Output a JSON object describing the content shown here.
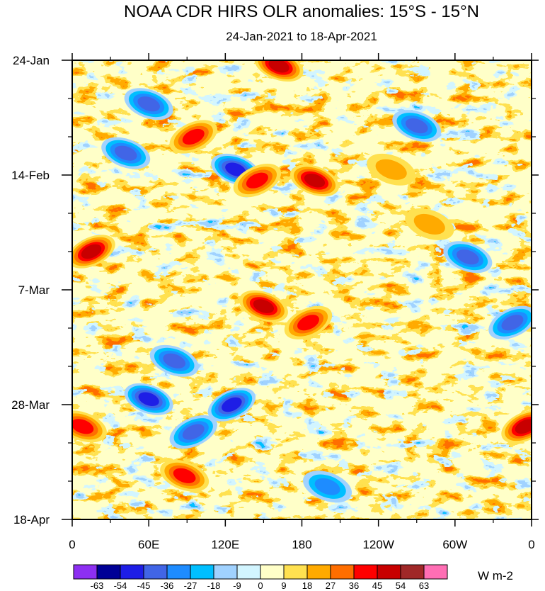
{
  "chart_data": {
    "type": "heatmap",
    "title": "NOAA CDR HIRS OLR anomalies: 15°S - 15°N",
    "subtitle": "24-Jan-2021 to 18-Apr-2021",
    "x_ticks": [
      "0",
      "60E",
      "120E",
      "180",
      "120W",
      "60W",
      "0"
    ],
    "x_tick_values": [
      0,
      60,
      120,
      180,
      240,
      300,
      360
    ],
    "xlim": [
      0,
      360
    ],
    "y_ticks": [
      "24-Jan",
      "14-Feb",
      "7-Mar",
      "28-Mar",
      "18-Apr"
    ],
    "y_tick_values": [
      0,
      21,
      42,
      63,
      84
    ],
    "ylim": [
      0,
      84
    ],
    "colorbar": {
      "levels": [
        "-63",
        "-54",
        "-45",
        "-36",
        "-27",
        "-18",
        "-9",
        "0",
        "9",
        "18",
        "27",
        "36",
        "45",
        "54",
        "63"
      ],
      "colors": [
        "#8d2ff2",
        "#000096",
        "#1e1ee6",
        "#4165e6",
        "#1e8cff",
        "#00bfff",
        "#a0d2ff",
        "#d2f5ff",
        "#ffffc8",
        "#ffe150",
        "#ffaa00",
        "#ff6e00",
        "#ff0000",
        "#c80000",
        "#a02828",
        "#ff6eb4"
      ],
      "units": "W m-2"
    },
    "anomaly_features": [
      {
        "lon": 162,
        "day": 1,
        "value": 50
      },
      {
        "lon": 60,
        "day": 8,
        "value": -36
      },
      {
        "lon": 42,
        "day": 17,
        "value": -40
      },
      {
        "lon": 95,
        "day": 14,
        "value": 40
      },
      {
        "lon": 128,
        "day": 20,
        "value": -50
      },
      {
        "lon": 145,
        "day": 22,
        "value": 40
      },
      {
        "lon": 190,
        "day": 22,
        "value": 45
      },
      {
        "lon": 15,
        "day": 35,
        "value": 45
      },
      {
        "lon": 150,
        "day": 45,
        "value": 45
      },
      {
        "lon": 185,
        "day": 48,
        "value": 40
      },
      {
        "lon": 310,
        "day": 36,
        "value": -40
      },
      {
        "lon": 345,
        "day": 48,
        "value": -36
      },
      {
        "lon": 80,
        "day": 55,
        "value": -36
      },
      {
        "lon": 60,
        "day": 62,
        "value": -45
      },
      {
        "lon": 125,
        "day": 63,
        "value": -50
      },
      {
        "lon": 95,
        "day": 68,
        "value": -40
      },
      {
        "lon": 8,
        "day": 67,
        "value": 40
      },
      {
        "lon": 355,
        "day": 67,
        "value": 45
      },
      {
        "lon": 88,
        "day": 76,
        "value": 40
      },
      {
        "lon": 200,
        "day": 78,
        "value": -27
      },
      {
        "lon": 270,
        "day": 12,
        "value": -36
      },
      {
        "lon": 250,
        "day": 20,
        "value": 18
      },
      {
        "lon": 280,
        "day": 30,
        "value": 20
      }
    ]
  }
}
